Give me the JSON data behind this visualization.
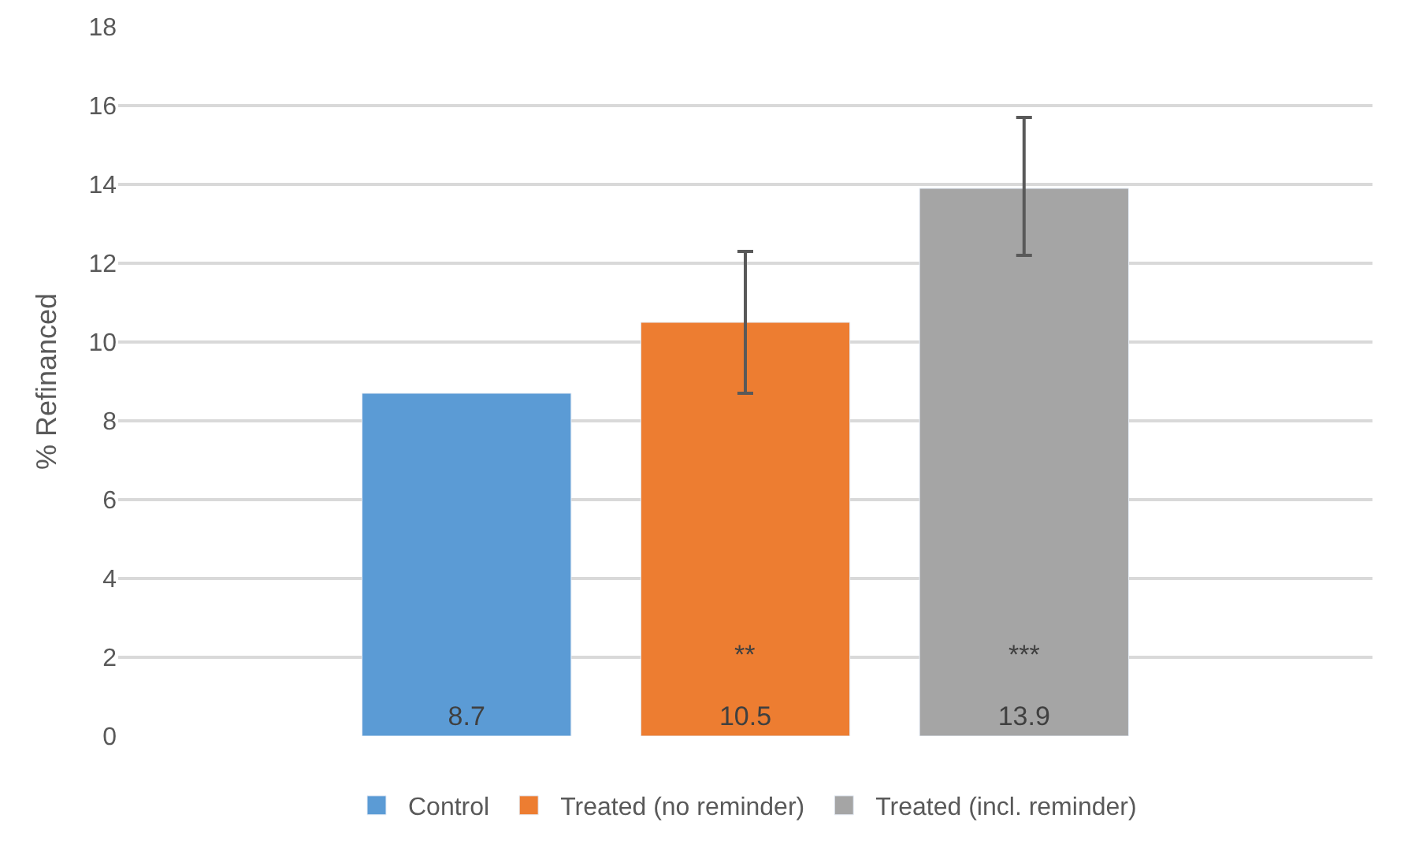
{
  "chart_data": {
    "type": "bar",
    "ylabel": "% Refinanced",
    "categories": [
      null
    ],
    "series": [
      {
        "name": "Control",
        "color": "#5b9bd5",
        "values": [
          8.7
        ]
      },
      {
        "name": "Treated (no reminder)",
        "color": "#ed7d31",
        "values": [
          10.5
        ],
        "errors": [
          [
            8.7,
            12.3
          ]
        ]
      },
      {
        "name": "Treated (incl. reminder)",
        "color": "#a5a5a5",
        "values": [
          13.9
        ],
        "errors": [
          [
            12.2,
            15.7
          ]
        ]
      }
    ],
    "annotations": [
      "**",
      "***"
    ],
    "data_labels": true,
    "ylim": [
      0,
      18
    ],
    "yticks": [
      0,
      2,
      4,
      6,
      8,
      10,
      12,
      14,
      16,
      18
    ],
    "grid": "y",
    "legend": "bottom"
  }
}
